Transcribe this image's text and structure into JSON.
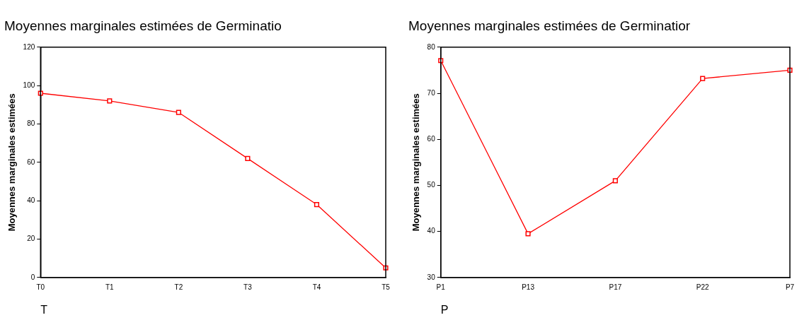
{
  "chart_data": [
    {
      "type": "line",
      "title": "Moyennes marginales estimées de Germinatio",
      "xlabel": "T",
      "ylabel": "Moyennes marginales estimées",
      "categories": [
        "T0",
        "T1",
        "T2",
        "T3",
        "T4",
        "T5"
      ],
      "series": [
        {
          "color": "#ff0000",
          "values": [
            96,
            92,
            86,
            62,
            38,
            5
          ]
        }
      ],
      "ylim": [
        0,
        120
      ],
      "yticks": [
        0,
        20,
        40,
        60,
        80,
        100,
        120
      ],
      "grid": false,
      "legend": false,
      "marker": "square",
      "line_style": "solid"
    },
    {
      "type": "line",
      "title": "Moyennes marginales estimées de Germinatior",
      "xlabel": "P",
      "ylabel": "Moyennes marginales estimées",
      "categories": [
        "P1",
        "P13",
        "P17",
        "P22",
        "P7"
      ],
      "series": [
        {
          "color": "#ff0000",
          "values": [
            77.1,
            39.5,
            51,
            73.2,
            75
          ]
        }
      ],
      "ylim": [
        30,
        80
      ],
      "yticks": [
        30,
        40,
        50,
        60,
        70,
        80
      ],
      "grid": false,
      "legend": false,
      "marker": "square",
      "line_style": "solid"
    }
  ]
}
